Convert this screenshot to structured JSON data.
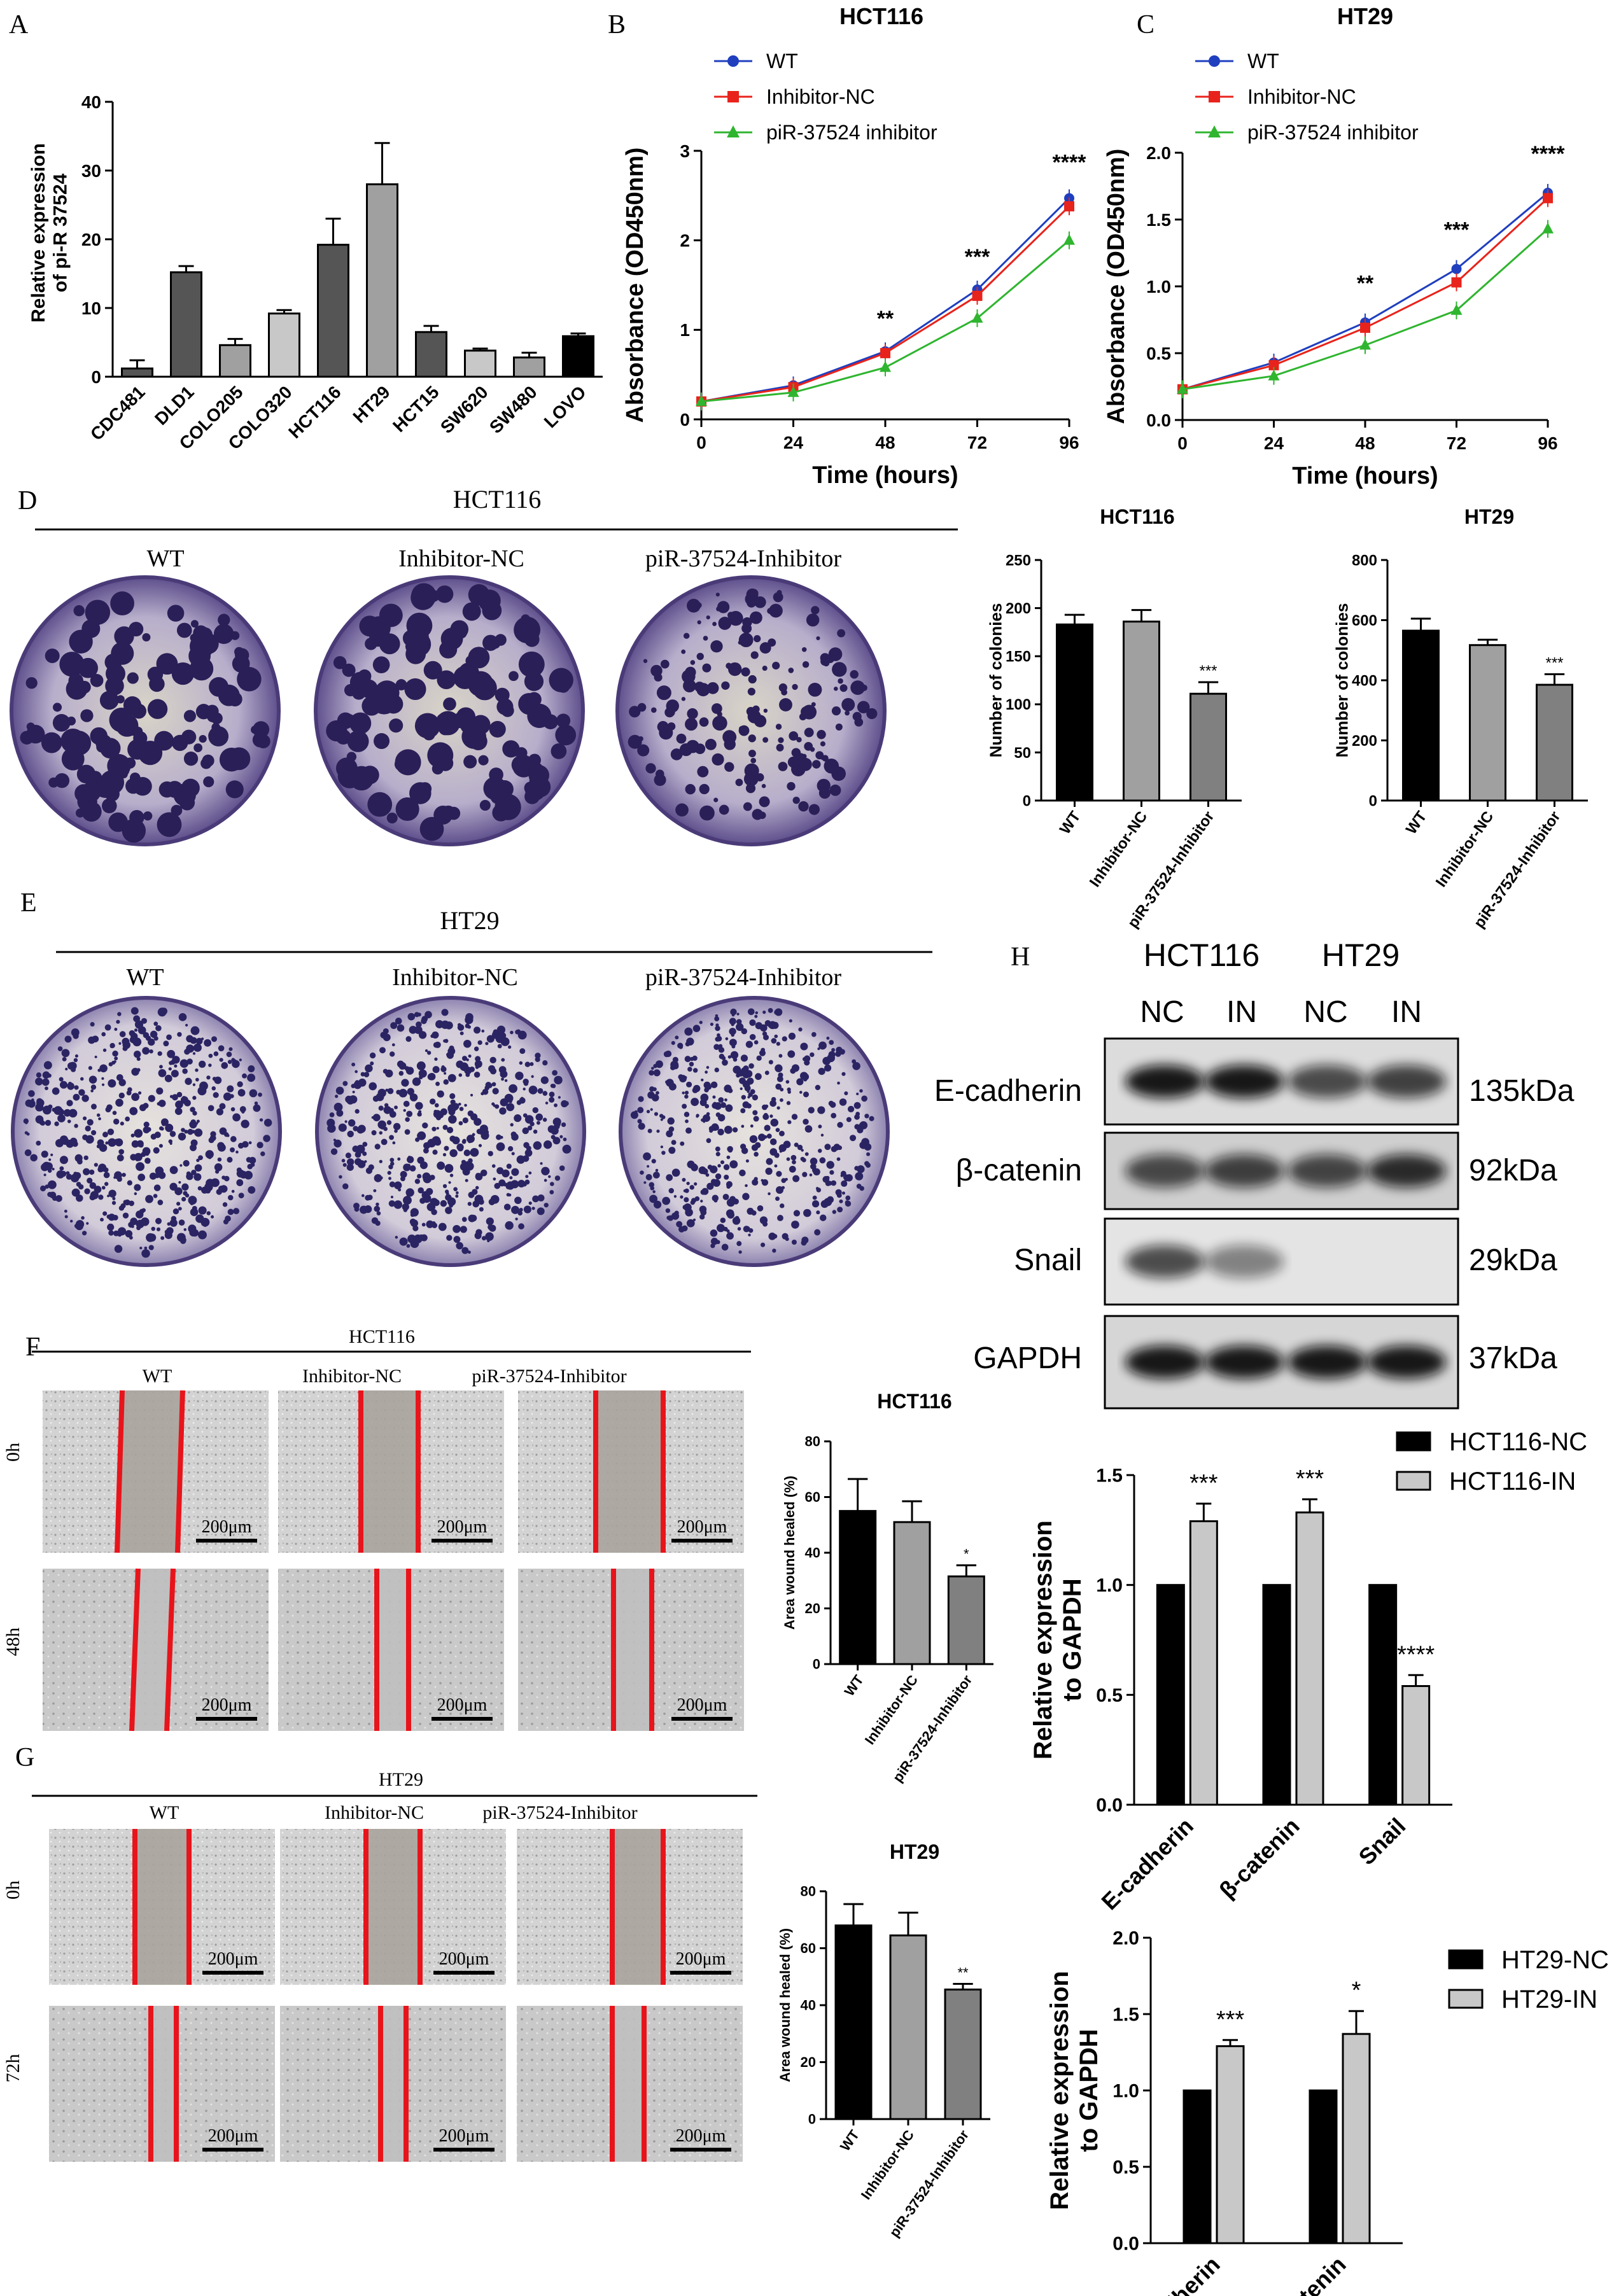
{
  "panels": {
    "A": {
      "letter": "A"
    },
    "B": {
      "letter": "B",
      "title": "HCT116"
    },
    "C": {
      "letter": "C",
      "title": "HT29"
    },
    "D": {
      "letter": "D",
      "title": "HCT116",
      "dish_labels": [
        "WT",
        "Inhibitor-NC",
        "piR-37524-Inhibitor"
      ]
    },
    "E": {
      "letter": "E",
      "title": "HT29",
      "dish_labels": [
        "WT",
        "Inhibitor-NC",
        "piR-37524-Inhibitor"
      ]
    },
    "F": {
      "letter": "F",
      "title": "HCT116",
      "col_labels": [
        "WT",
        "Inhibitor-NC",
        "piR-37524-Inhibitor"
      ],
      "row_labels": [
        "0h",
        "48h"
      ],
      "scale_bar": "200μm"
    },
    "G": {
      "letter": "G",
      "title": "HT29",
      "col_labels": [
        "WT",
        "Inhibitor-NC",
        "piR-37524-Inhibitor"
      ],
      "row_labels": [
        "0h",
        "72h"
      ],
      "scale_bar": "200μm"
    },
    "H": {
      "letter": "H",
      "cell_lines": [
        "HCT116",
        "HT29"
      ],
      "lanes": [
        "NC",
        "IN",
        "NC",
        "IN"
      ],
      "proteins": [
        "E-cadherin",
        "β-catenin",
        "Snail",
        "GAPDH"
      ],
      "sizes": [
        "135kDa",
        "92kDa",
        "29kDa",
        "37kDa"
      ]
    }
  },
  "colors": {
    "wt": "#1f3fbf",
    "nc": "#e8231b",
    "inh": "#2fb52f",
    "scratch": "#e8141b",
    "black_bar": "#000000",
    "light_bar": "#c8c8c8",
    "mid_bar": "#a0a0a0",
    "dark_grey_bar": "#555555",
    "dim_grey_bar": "#808080"
  },
  "chart_data": [
    {
      "id": "A",
      "type": "bar",
      "ylabel": "Relative expression of pi-R 37524",
      "ylim": [
        0,
        40
      ],
      "yticks": [
        0,
        10,
        20,
        30,
        40
      ],
      "categories": [
        "CDC481",
        "DLD1",
        "COLO205",
        "COLO320",
        "HCT116",
        "HT29",
        "HCT15",
        "SW620",
        "SW480",
        "LOVO"
      ],
      "values": [
        1.2,
        15.2,
        4.6,
        9.2,
        19.2,
        28.0,
        6.5,
        3.8,
        2.8,
        5.9
      ],
      "errors": [
        1.2,
        0.9,
        0.9,
        0.5,
        3.8,
        6.0,
        0.9,
        0.3,
        0.7,
        0.4
      ],
      "colors": [
        "#555555",
        "#555555",
        "#a0a0a0",
        "#c8c8c8",
        "#555555",
        "#a0a0a0",
        "#555555",
        "#c8c8c8",
        "#a0a0a0",
        "#000000"
      ]
    },
    {
      "id": "B",
      "type": "line",
      "title": "HCT116",
      "xlabel": "Time (hours)",
      "ylabel": "Absorbance (OD450nm)",
      "x": [
        0,
        24,
        48,
        72,
        96
      ],
      "ylim": [
        0,
        3
      ],
      "yticks": [
        0,
        1,
        2,
        3
      ],
      "series": [
        {
          "name": "WT",
          "values": [
            0.2,
            0.38,
            0.76,
            1.45,
            2.47
          ]
        },
        {
          "name": "Inhibitor-NC",
          "values": [
            0.2,
            0.36,
            0.74,
            1.38,
            2.38
          ]
        },
        {
          "name": "piR-37524 inhibitor",
          "values": [
            0.2,
            0.3,
            0.58,
            1.13,
            2.0
          ]
        }
      ],
      "significance": [
        {
          "x": 48,
          "label": "**"
        },
        {
          "x": 72,
          "label": "***"
        },
        {
          "x": 96,
          "label": "****"
        }
      ]
    },
    {
      "id": "C",
      "type": "line",
      "title": "HT29",
      "xlabel": "Time (hours)",
      "ylabel": "Absorbance (OD450nm)",
      "x": [
        0,
        24,
        48,
        72,
        96
      ],
      "ylim": [
        0,
        2.0
      ],
      "yticks": [
        0.0,
        0.5,
        1.0,
        1.5,
        2.0
      ],
      "series": [
        {
          "name": "WT",
          "values": [
            0.23,
            0.43,
            0.73,
            1.13,
            1.7
          ]
        },
        {
          "name": "Inhibitor-NC",
          "values": [
            0.23,
            0.41,
            0.69,
            1.03,
            1.66
          ]
        },
        {
          "name": "piR-37524 inhibitor",
          "values": [
            0.23,
            0.33,
            0.56,
            0.82,
            1.43
          ]
        }
      ],
      "significance": [
        {
          "x": 48,
          "label": "**"
        },
        {
          "x": 72,
          "label": "***"
        },
        {
          "x": 96,
          "label": "****"
        }
      ]
    },
    {
      "id": "D-HCT116",
      "type": "bar",
      "title": "HCT116",
      "ylabel": "Number of colonies",
      "ylim": [
        0,
        250
      ],
      "yticks": [
        0,
        50,
        100,
        150,
        200,
        250
      ],
      "categories": [
        "WT",
        "Inhibitor-NC",
        "piR-37524-Inhibitor"
      ],
      "values": [
        183,
        186,
        111
      ],
      "errors": [
        10,
        12,
        12
      ],
      "significance": [
        "",
        "",
        "***"
      ]
    },
    {
      "id": "D-HT29",
      "type": "bar",
      "title": "HT29",
      "ylabel": "Number of colonies",
      "ylim": [
        0,
        800
      ],
      "yticks": [
        0,
        200,
        400,
        600,
        800
      ],
      "categories": [
        "WT",
        "Inhibitor-NC",
        "piR-37524-Inhibitor"
      ],
      "values": [
        565,
        517,
        385
      ],
      "errors": [
        40,
        18,
        35
      ],
      "significance": [
        "",
        "",
        "***"
      ]
    },
    {
      "id": "F-chart",
      "type": "bar",
      "title": "HCT116",
      "ylabel": "Area wound healed (%)",
      "ylim": [
        0,
        80
      ],
      "yticks": [
        0,
        20,
        40,
        60,
        80
      ],
      "categories": [
        "WT",
        "Inhibitor-NC",
        "piR-37524-Inhibitor"
      ],
      "values": [
        55,
        51,
        31.5
      ],
      "errors": [
        11.5,
        7.5,
        4
      ],
      "significance": [
        "",
        "",
        "*"
      ]
    },
    {
      "id": "G-chart",
      "type": "bar",
      "title": "HT29",
      "ylabel": "Area wound healed (%)",
      "ylim": [
        0,
        80
      ],
      "yticks": [
        0,
        20,
        40,
        60,
        80
      ],
      "categories": [
        "WT",
        "Inhibitor-NC",
        "piR-37524-Inhibitor"
      ],
      "values": [
        68,
        64.5,
        45.5
      ],
      "errors": [
        7.5,
        8,
        2
      ],
      "significance": [
        "",
        "",
        "**"
      ]
    },
    {
      "id": "H-HCT116",
      "type": "bar",
      "ylabel": "Relative expression to GAPDH",
      "ylim": [
        0,
        1.5
      ],
      "yticks": [
        0.0,
        0.5,
        1.0,
        1.5
      ],
      "categories": [
        "E-cadherin",
        "β-catenin",
        "Snail"
      ],
      "series": [
        {
          "name": "HCT116-NC",
          "values": [
            1.0,
            1.0,
            1.0
          ],
          "errors": [
            0,
            0,
            0
          ]
        },
        {
          "name": "HCT116-IN",
          "values": [
            1.29,
            1.33,
            0.54
          ],
          "errors": [
            0.08,
            0.06,
            0.05
          ]
        }
      ],
      "significance": [
        "***",
        "***",
        "****"
      ]
    },
    {
      "id": "H-HT29",
      "type": "bar",
      "ylabel": "Relative expression to GAPDH",
      "ylim": [
        0,
        2.0
      ],
      "yticks": [
        0.0,
        0.5,
        1.0,
        1.5,
        2.0
      ],
      "categories": [
        "E-cadherin",
        "β-catenin"
      ],
      "series": [
        {
          "name": "HT29-NC",
          "values": [
            1.0,
            1.0
          ],
          "errors": [
            0,
            0
          ]
        },
        {
          "name": "HT29-IN",
          "values": [
            1.29,
            1.37
          ],
          "errors": [
            0.04,
            0.15
          ]
        }
      ],
      "significance": [
        "***",
        "*"
      ]
    }
  ]
}
